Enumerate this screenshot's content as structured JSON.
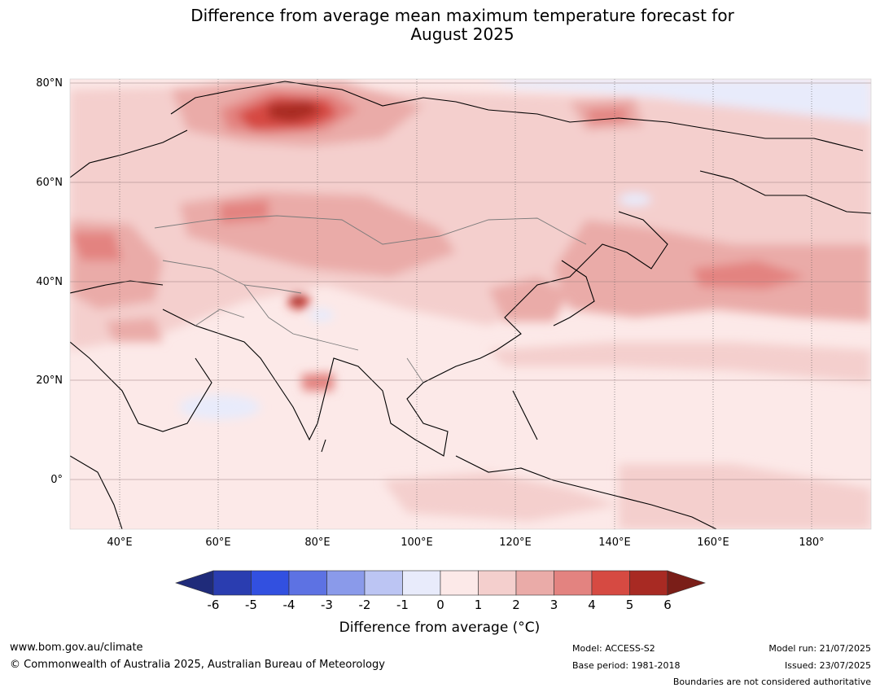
{
  "title": {
    "line1": "Difference from average mean maximum temperature forecast for",
    "line2": "August 2025"
  },
  "map": {
    "lat_labels": [
      "80°N",
      "60°N",
      "40°N",
      "20°N",
      "0°"
    ],
    "lon_labels": [
      "40°E",
      "60°E",
      "80°E",
      "100°E",
      "120°E",
      "140°E",
      "160°E",
      "180°"
    ]
  },
  "colorbar": {
    "ticks": [
      "-6",
      "-5",
      "-4",
      "-3",
      "-2",
      "-1",
      "0",
      "1",
      "2",
      "3",
      "4",
      "5",
      "6"
    ],
    "colors": [
      "#1f2b7a",
      "#2a3db0",
      "#3250e0",
      "#5d72e3",
      "#8a9aea",
      "#bcc5f3",
      "#e8ebfb",
      "#fce9e8",
      "#f4cfcd",
      "#eaaba8",
      "#e38380",
      "#d64a42",
      "#a82a23",
      "#7a1e18"
    ],
    "label": "Difference from average (°C)"
  },
  "footer": {
    "url": "www.bom.gov.au/climate",
    "copyright": "© Commonwealth of Australia 2025, Australian Bureau of Meteorology",
    "model": "Model: ACCESS-S2",
    "base_period": "Base period: 1981-2018",
    "model_run": "Model run: 21/07/2025",
    "issued": "Issued: 23/07/2025",
    "disclaimer": "Boundaries are not considered authoritative"
  }
}
